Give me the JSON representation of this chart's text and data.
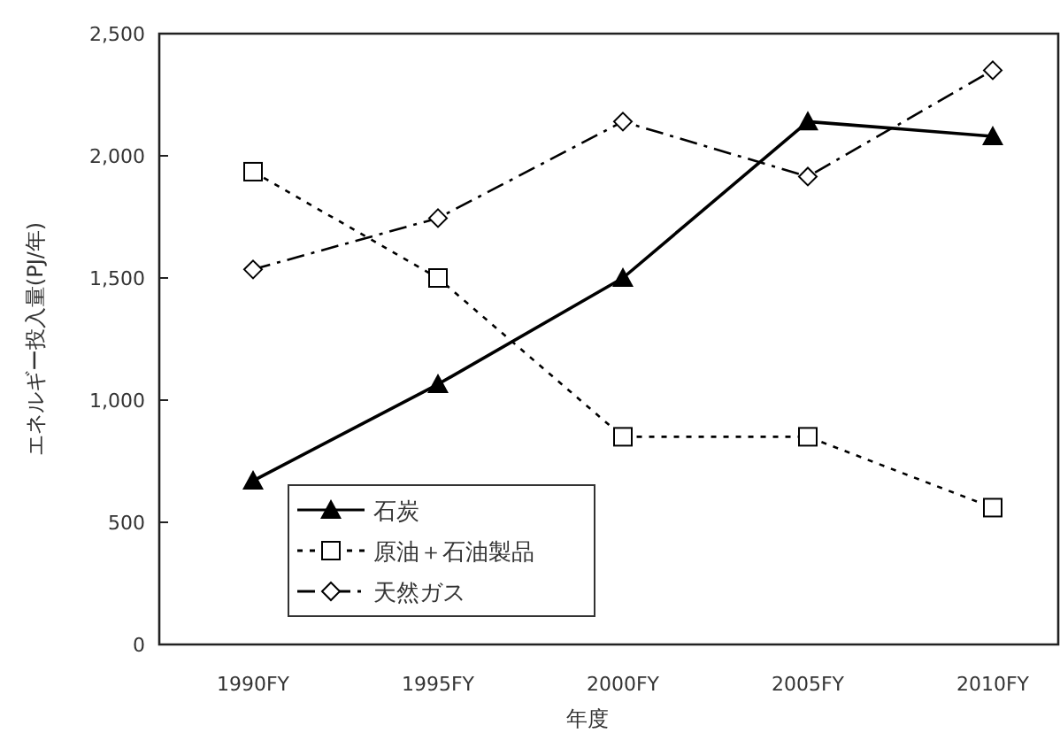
{
  "chart_data": {
    "type": "line",
    "xlabel": "年度",
    "ylabel": "エネルギー投入量(PJ/年)",
    "categories": [
      "1990FY",
      "1995FY",
      "2000FY",
      "2005FY",
      "2010FY"
    ],
    "series": [
      {
        "name": "石炭",
        "color": "#000000",
        "marker": "triangle",
        "line_style": "solid",
        "values": [
          670,
          1065,
          1500,
          2140,
          2080
        ]
      },
      {
        "name": "原油＋石油製品",
        "color": "#000000",
        "marker": "square",
        "line_style": "dotted",
        "values": [
          1935,
          1500,
          850,
          850,
          560
        ]
      },
      {
        "name": "天然ガス",
        "color": "#000000",
        "marker": "diamond",
        "line_style": "dashed",
        "values": [
          1535,
          1745,
          2140,
          1915,
          2350
        ]
      }
    ],
    "ylim": [
      0,
      2500
    ],
    "yticks": [
      {
        "value": 0,
        "label": "0"
      },
      {
        "value": 500,
        "label": "500"
      },
      {
        "value": 1000,
        "label": "1,000"
      },
      {
        "value": 1500,
        "label": "1,500"
      },
      {
        "value": 2000,
        "label": "2,000"
      },
      {
        "value": 2500,
        "label": "2,500"
      }
    ],
    "grid": false,
    "legend": "bottom left"
  }
}
